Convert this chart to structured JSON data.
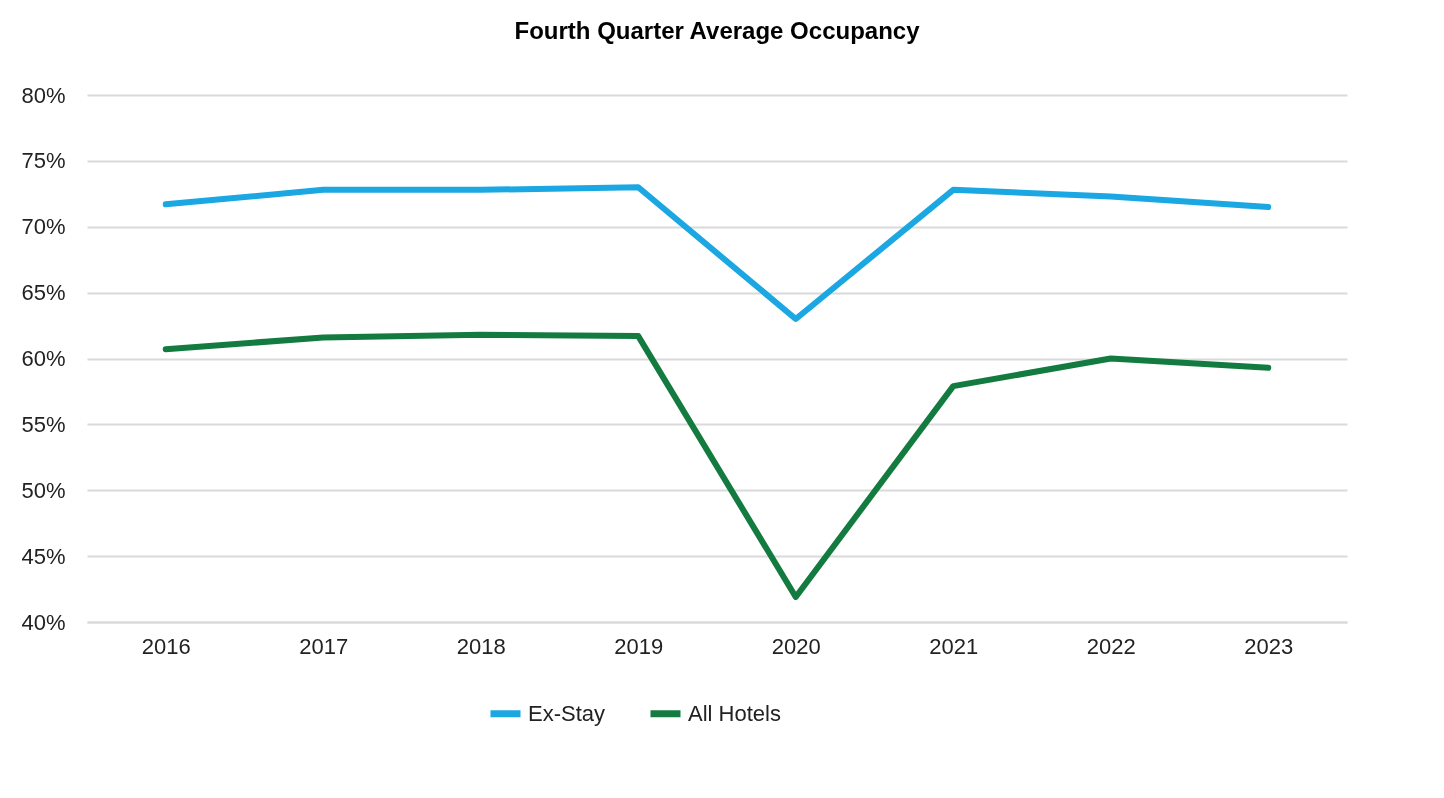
{
  "chart_data": {
    "type": "line",
    "title": "Fourth Quarter Average Occupancy",
    "categories": [
      "2016",
      "2017",
      "2018",
      "2019",
      "2020",
      "2021",
      "2022",
      "2023"
    ],
    "series": [
      {
        "name": "Ex-Stay",
        "color": "#1ba7e1",
        "values": [
          71.7,
          72.8,
          72.8,
          73.0,
          63.0,
          72.8,
          72.3,
          71.5
        ]
      },
      {
        "name": "All Hotels",
        "color": "#137b3f",
        "values": [
          60.7,
          61.6,
          61.8,
          61.7,
          41.9,
          57.9,
          60.0,
          59.3
        ]
      }
    ],
    "ylim": [
      40,
      80
    ],
    "yticks": [
      {
        "value": 40,
        "label": "40%"
      },
      {
        "value": 45,
        "label": "45%"
      },
      {
        "value": 50,
        "label": "50%"
      },
      {
        "value": 55,
        "label": "55%"
      },
      {
        "value": 60,
        "label": "60%"
      },
      {
        "value": 65,
        "label": "65%"
      },
      {
        "value": 70,
        "label": "70%"
      },
      {
        "value": 75,
        "label": "75%"
      },
      {
        "value": 80,
        "label": "80%"
      }
    ],
    "grid": "y",
    "legend": "bottom",
    "marker": "none",
    "line_style": "solid"
  }
}
